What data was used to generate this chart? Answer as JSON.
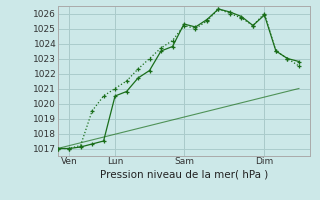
{
  "background_color": "#cce8e8",
  "grid_color": "#aacccc",
  "line_color": "#1a6e1a",
  "title": "Pression niveau de la mer( hPa )",
  "ylabel_vals": [
    1017,
    1018,
    1019,
    1020,
    1021,
    1022,
    1023,
    1024,
    1025,
    1026
  ],
  "ylim": [
    1016.5,
    1026.5
  ],
  "xlim": [
    0,
    22
  ],
  "xtick_positions": [
    1,
    5,
    11,
    18
  ],
  "xtick_labels": [
    "Ven",
    "Lun",
    "Sam",
    "Dim"
  ],
  "vlines": [
    1,
    5,
    11,
    18
  ],
  "line1_x": [
    0,
    1,
    2,
    3,
    4,
    5,
    6,
    7,
    8,
    9,
    10,
    11,
    12,
    13,
    14,
    15,
    16,
    17,
    18,
    19,
    20,
    21
  ],
  "line1_y": [
    1017.0,
    1017.0,
    1017.2,
    1019.5,
    1020.5,
    1021.0,
    1021.5,
    1022.3,
    1023.0,
    1023.7,
    1024.2,
    1025.2,
    1025.0,
    1025.5,
    1026.3,
    1026.0,
    1025.7,
    1025.2,
    1026.0,
    1023.5,
    1023.0,
    1022.5
  ],
  "line2_x": [
    0,
    1,
    2,
    3,
    4,
    5,
    6,
    7,
    8,
    9,
    10,
    11,
    12,
    13,
    14,
    15,
    16,
    17,
    18,
    19,
    20,
    21
  ],
  "line2_y": [
    1017.0,
    1017.0,
    1017.1,
    1017.3,
    1017.5,
    1020.5,
    1020.8,
    1021.7,
    1022.2,
    1023.5,
    1023.8,
    1025.3,
    1025.1,
    1025.6,
    1026.3,
    1026.1,
    1025.8,
    1025.2,
    1025.9,
    1023.5,
    1023.0,
    1022.8
  ],
  "line3_x": [
    0,
    21
  ],
  "line3_y": [
    1017.0,
    1021.0
  ]
}
